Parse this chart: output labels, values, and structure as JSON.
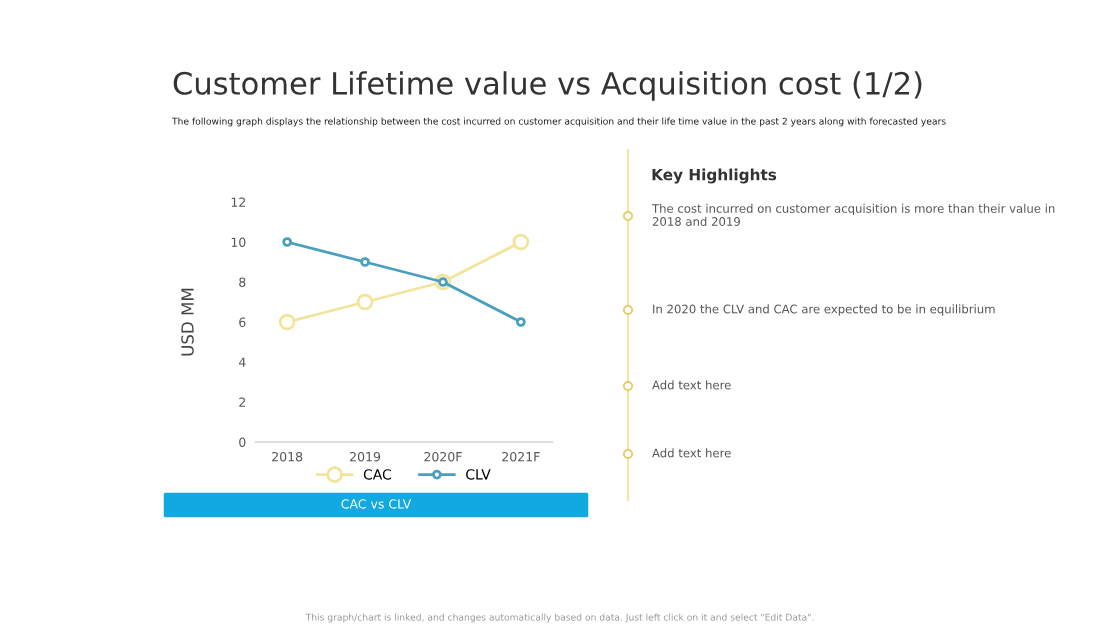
{
  "chart_data": {
    "type": "line",
    "title": "Customer Lifetime value vs Acquisition cost (1/2)",
    "subtitle": "The following graph displays the relationship between the cost incurred on customer acquisition and their life time value in the past 2 years along with forecasted years",
    "ylabel": "USD MM",
    "categories": [
      "2018",
      "2019",
      "2020F",
      "2021F"
    ],
    "series": [
      {
        "name": "CAC",
        "color": "#f2e49b",
        "values": [
          6,
          7,
          8,
          10
        ]
      },
      {
        "name": "CLV",
        "color": "#4a9fbf",
        "values": [
          10,
          9,
          8,
          6
        ]
      }
    ],
    "ylim": [
      0,
      12
    ],
    "yticks": [
      0,
      2,
      4,
      6,
      8,
      10,
      12
    ],
    "grid": false,
    "legend": "bottom",
    "marker": "circle",
    "line_style": "solid",
    "annotations": [
      "CAC vs CLV",
      "Key Highlights",
      "The cost incurred on customer acquisition is more than their value in 2018 and 2019",
      "In 2020 the CLV and CAC are expected to be in equilibrium",
      "Add text here",
      "Add text here",
      "This graph/chart is linked, and changes automatically based on data. Just left click on it and select \"Edit Data\"."
    ]
  }
}
